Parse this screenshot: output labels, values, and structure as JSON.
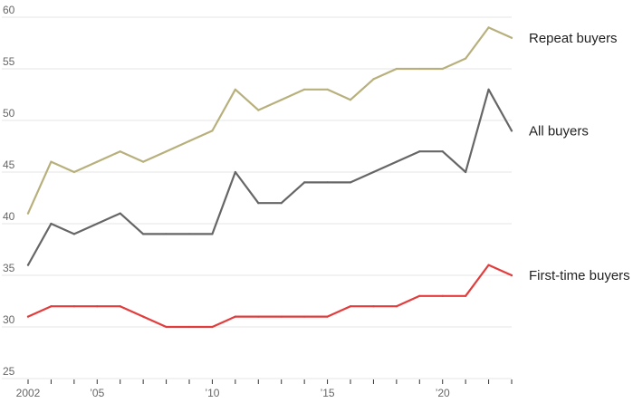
{
  "chart_data": {
    "type": "line",
    "title": "",
    "xlabel": "",
    "ylabel": "",
    "x": [
      2002,
      2003,
      2004,
      2005,
      2006,
      2007,
      2008,
      2009,
      2010,
      2011,
      2012,
      2013,
      2014,
      2015,
      2016,
      2017,
      2018,
      2019,
      2020,
      2021,
      2022,
      2023
    ],
    "xlim": [
      2002,
      2023
    ],
    "ylim": [
      25,
      60
    ],
    "yticks": [
      {
        "value": 60,
        "label": "60"
      },
      {
        "value": 55,
        "label": "55"
      },
      {
        "value": 50,
        "label": "50"
      },
      {
        "value": 45,
        "label": "45"
      },
      {
        "value": 40,
        "label": "40"
      },
      {
        "value": 35,
        "label": "35"
      },
      {
        "value": 30,
        "label": "30"
      },
      {
        "value": 25,
        "label": "25"
      }
    ],
    "xticks": [
      {
        "value": 2002,
        "label": "2002"
      },
      {
        "value": 2005,
        "label": "’05"
      },
      {
        "value": 2010,
        "label": "’10"
      },
      {
        "value": 2015,
        "label": "’15"
      },
      {
        "value": 2020,
        "label": "’20"
      }
    ],
    "grid": "horizontal",
    "series": [
      {
        "name": "Repeat buyers",
        "color": "#b8b07c",
        "values": [
          41,
          46,
          45,
          46,
          47,
          46,
          47,
          48,
          49,
          53,
          51,
          52,
          53,
          53,
          52,
          54,
          55,
          55,
          55,
          56,
          59,
          58
        ]
      },
      {
        "name": "All buyers",
        "color": "#666666",
        "values": [
          36,
          40,
          39,
          40,
          41,
          39,
          39,
          39,
          39,
          45,
          42,
          42,
          44,
          44,
          44,
          45,
          46,
          47,
          47,
          45,
          53,
          49
        ]
      },
      {
        "name": "First-time buyers",
        "color": "#e23c3c",
        "values": [
          31,
          32,
          32,
          32,
          32,
          31,
          30,
          30,
          30,
          31,
          31,
          31,
          31,
          31,
          32,
          32,
          32,
          33,
          33,
          33,
          36,
          35
        ]
      }
    ]
  }
}
